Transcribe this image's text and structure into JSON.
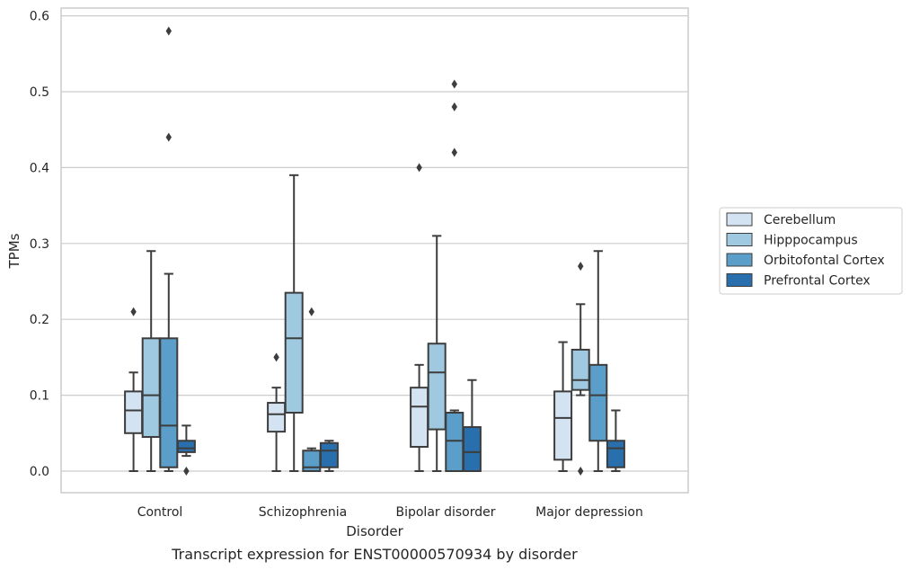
{
  "chart_data": {
    "type": "boxplot",
    "caption": "Transcript expression for ENST00000570934 by disorder",
    "xlabel": "Disorder",
    "ylabel": "TPMs",
    "ylim": [
      -0.028,
      0.612
    ],
    "yticks": [
      0.0,
      0.1,
      0.2,
      0.3,
      0.4,
      0.5,
      0.6
    ],
    "ytick_labels": [
      "0.0",
      "0.1",
      "0.2",
      "0.3",
      "0.4",
      "0.5",
      "0.6"
    ],
    "grid": "horizontal",
    "legend_position": "right",
    "categories": [
      "Control",
      "Schizophrenia",
      "Bipolar disorder",
      "Major depression"
    ],
    "series": [
      {
        "name": "Cerebellum",
        "color": "#d4e3f2",
        "boxes": [
          {
            "whislo": 0.0,
            "q1": 0.05,
            "med": 0.08,
            "q3": 0.105,
            "whishi": 0.13,
            "fliers": [
              0.21
            ]
          },
          {
            "whislo": 0.0,
            "q1": 0.052,
            "med": 0.075,
            "q3": 0.09,
            "whishi": 0.11,
            "fliers": [
              0.15
            ]
          },
          {
            "whislo": 0.0,
            "q1": 0.032,
            "med": 0.085,
            "q3": 0.11,
            "whishi": 0.14,
            "fliers": [
              0.4
            ]
          },
          {
            "whislo": 0.0,
            "q1": 0.015,
            "med": 0.07,
            "q3": 0.105,
            "whishi": 0.17,
            "fliers": []
          }
        ]
      },
      {
        "name": "Hipppocampus",
        "color": "#9ec9e1",
        "boxes": [
          {
            "whislo": 0.0,
            "q1": 0.045,
            "med": 0.1,
            "q3": 0.175,
            "whishi": 0.29,
            "fliers": []
          },
          {
            "whislo": 0.0,
            "q1": 0.077,
            "med": 0.175,
            "q3": 0.235,
            "whishi": 0.39,
            "fliers": []
          },
          {
            "whislo": 0.0,
            "q1": 0.055,
            "med": 0.13,
            "q3": 0.168,
            "whishi": 0.31,
            "fliers": []
          },
          {
            "whislo": 0.1,
            "q1": 0.107,
            "med": 0.12,
            "q3": 0.16,
            "whishi": 0.22,
            "fliers": [
              0.27,
              0.0
            ]
          }
        ]
      },
      {
        "name": "Orbitofontal Cortex",
        "color": "#5a9ec9",
        "boxes": [
          {
            "whislo": 0.0,
            "q1": 0.005,
            "med": 0.06,
            "q3": 0.175,
            "whishi": 0.26,
            "fliers": [
              0.44,
              0.58
            ]
          },
          {
            "whislo": 0.0,
            "q1": 0.0,
            "med": 0.005,
            "q3": 0.027,
            "whishi": 0.03,
            "fliers": [
              0.21
            ]
          },
          {
            "whislo": 0.0,
            "q1": 0.0,
            "med": 0.04,
            "q3": 0.077,
            "whishi": 0.08,
            "fliers": [
              0.42,
              0.48,
              0.51
            ]
          },
          {
            "whislo": 0.0,
            "q1": 0.04,
            "med": 0.1,
            "q3": 0.14,
            "whishi": 0.29,
            "fliers": []
          }
        ]
      },
      {
        "name": "Prefrontal Cortex",
        "color": "#2a6fad",
        "boxes": [
          {
            "whislo": 0.02,
            "q1": 0.025,
            "med": 0.03,
            "q3": 0.04,
            "whishi": 0.06,
            "fliers": [
              0.0
            ]
          },
          {
            "whislo": 0.0,
            "q1": 0.005,
            "med": 0.027,
            "q3": 0.037,
            "whishi": 0.04,
            "fliers": []
          },
          {
            "whislo": 0.0,
            "q1": 0.0,
            "med": 0.025,
            "q3": 0.058,
            "whishi": 0.12,
            "fliers": []
          },
          {
            "whislo": 0.0,
            "q1": 0.005,
            "med": 0.03,
            "q3": 0.04,
            "whishi": 0.08,
            "fliers": []
          }
        ]
      }
    ]
  }
}
